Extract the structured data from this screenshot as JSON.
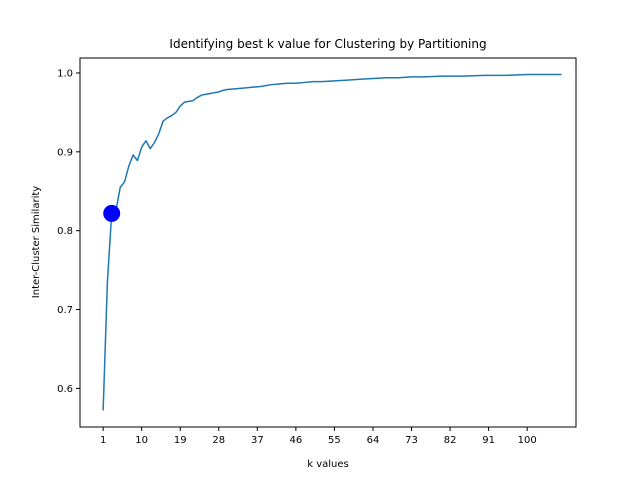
{
  "chart_data": {
    "type": "line",
    "title": "Identifying best k value for Clustering by Partitioning",
    "xlabel": "k values",
    "ylabel": "Inter-Cluster Similarity",
    "xlim": [
      -4.4,
      111.4
    ],
    "ylim": [
      0.551,
      1.019
    ],
    "xticks": [
      1,
      10,
      19,
      28,
      37,
      46,
      55,
      64,
      73,
      82,
      91,
      100
    ],
    "yticks": [
      0.6,
      0.7,
      0.8,
      0.9,
      1.0
    ],
    "ytick_labels": [
      "0.6",
      "0.7",
      "0.8",
      "0.9",
      "1.0"
    ],
    "grid": false,
    "series": [
      {
        "color": "#1f77b4",
        "x": [
          1,
          2,
          3,
          4,
          5,
          6,
          7,
          8,
          9,
          10,
          11,
          12,
          13,
          14,
          15,
          16,
          17,
          18,
          19,
          20,
          21,
          22,
          23,
          24,
          25,
          26,
          27,
          28,
          29,
          30,
          32,
          34,
          36,
          38,
          40,
          42,
          44,
          46,
          48,
          50,
          52,
          55,
          58,
          61,
          64,
          67,
          70,
          73,
          76,
          80,
          85,
          90,
          95,
          100,
          105,
          108
        ],
        "y": [
          0.572,
          0.735,
          0.822,
          0.826,
          0.855,
          0.862,
          0.882,
          0.896,
          0.889,
          0.906,
          0.914,
          0.904,
          0.912,
          0.923,
          0.939,
          0.943,
          0.946,
          0.95,
          0.958,
          0.963,
          0.964,
          0.965,
          0.969,
          0.972,
          0.973,
          0.974,
          0.975,
          0.976,
          0.978,
          0.979,
          0.98,
          0.981,
          0.982,
          0.983,
          0.985,
          0.986,
          0.987,
          0.987,
          0.988,
          0.989,
          0.989,
          0.99,
          0.991,
          0.992,
          0.993,
          0.994,
          0.994,
          0.995,
          0.995,
          0.996,
          0.996,
          0.997,
          0.997,
          0.998,
          0.998,
          0.998
        ]
      }
    ],
    "highlight_point": {
      "x": 3,
      "y": 0.822,
      "color": "#0000ff"
    }
  }
}
